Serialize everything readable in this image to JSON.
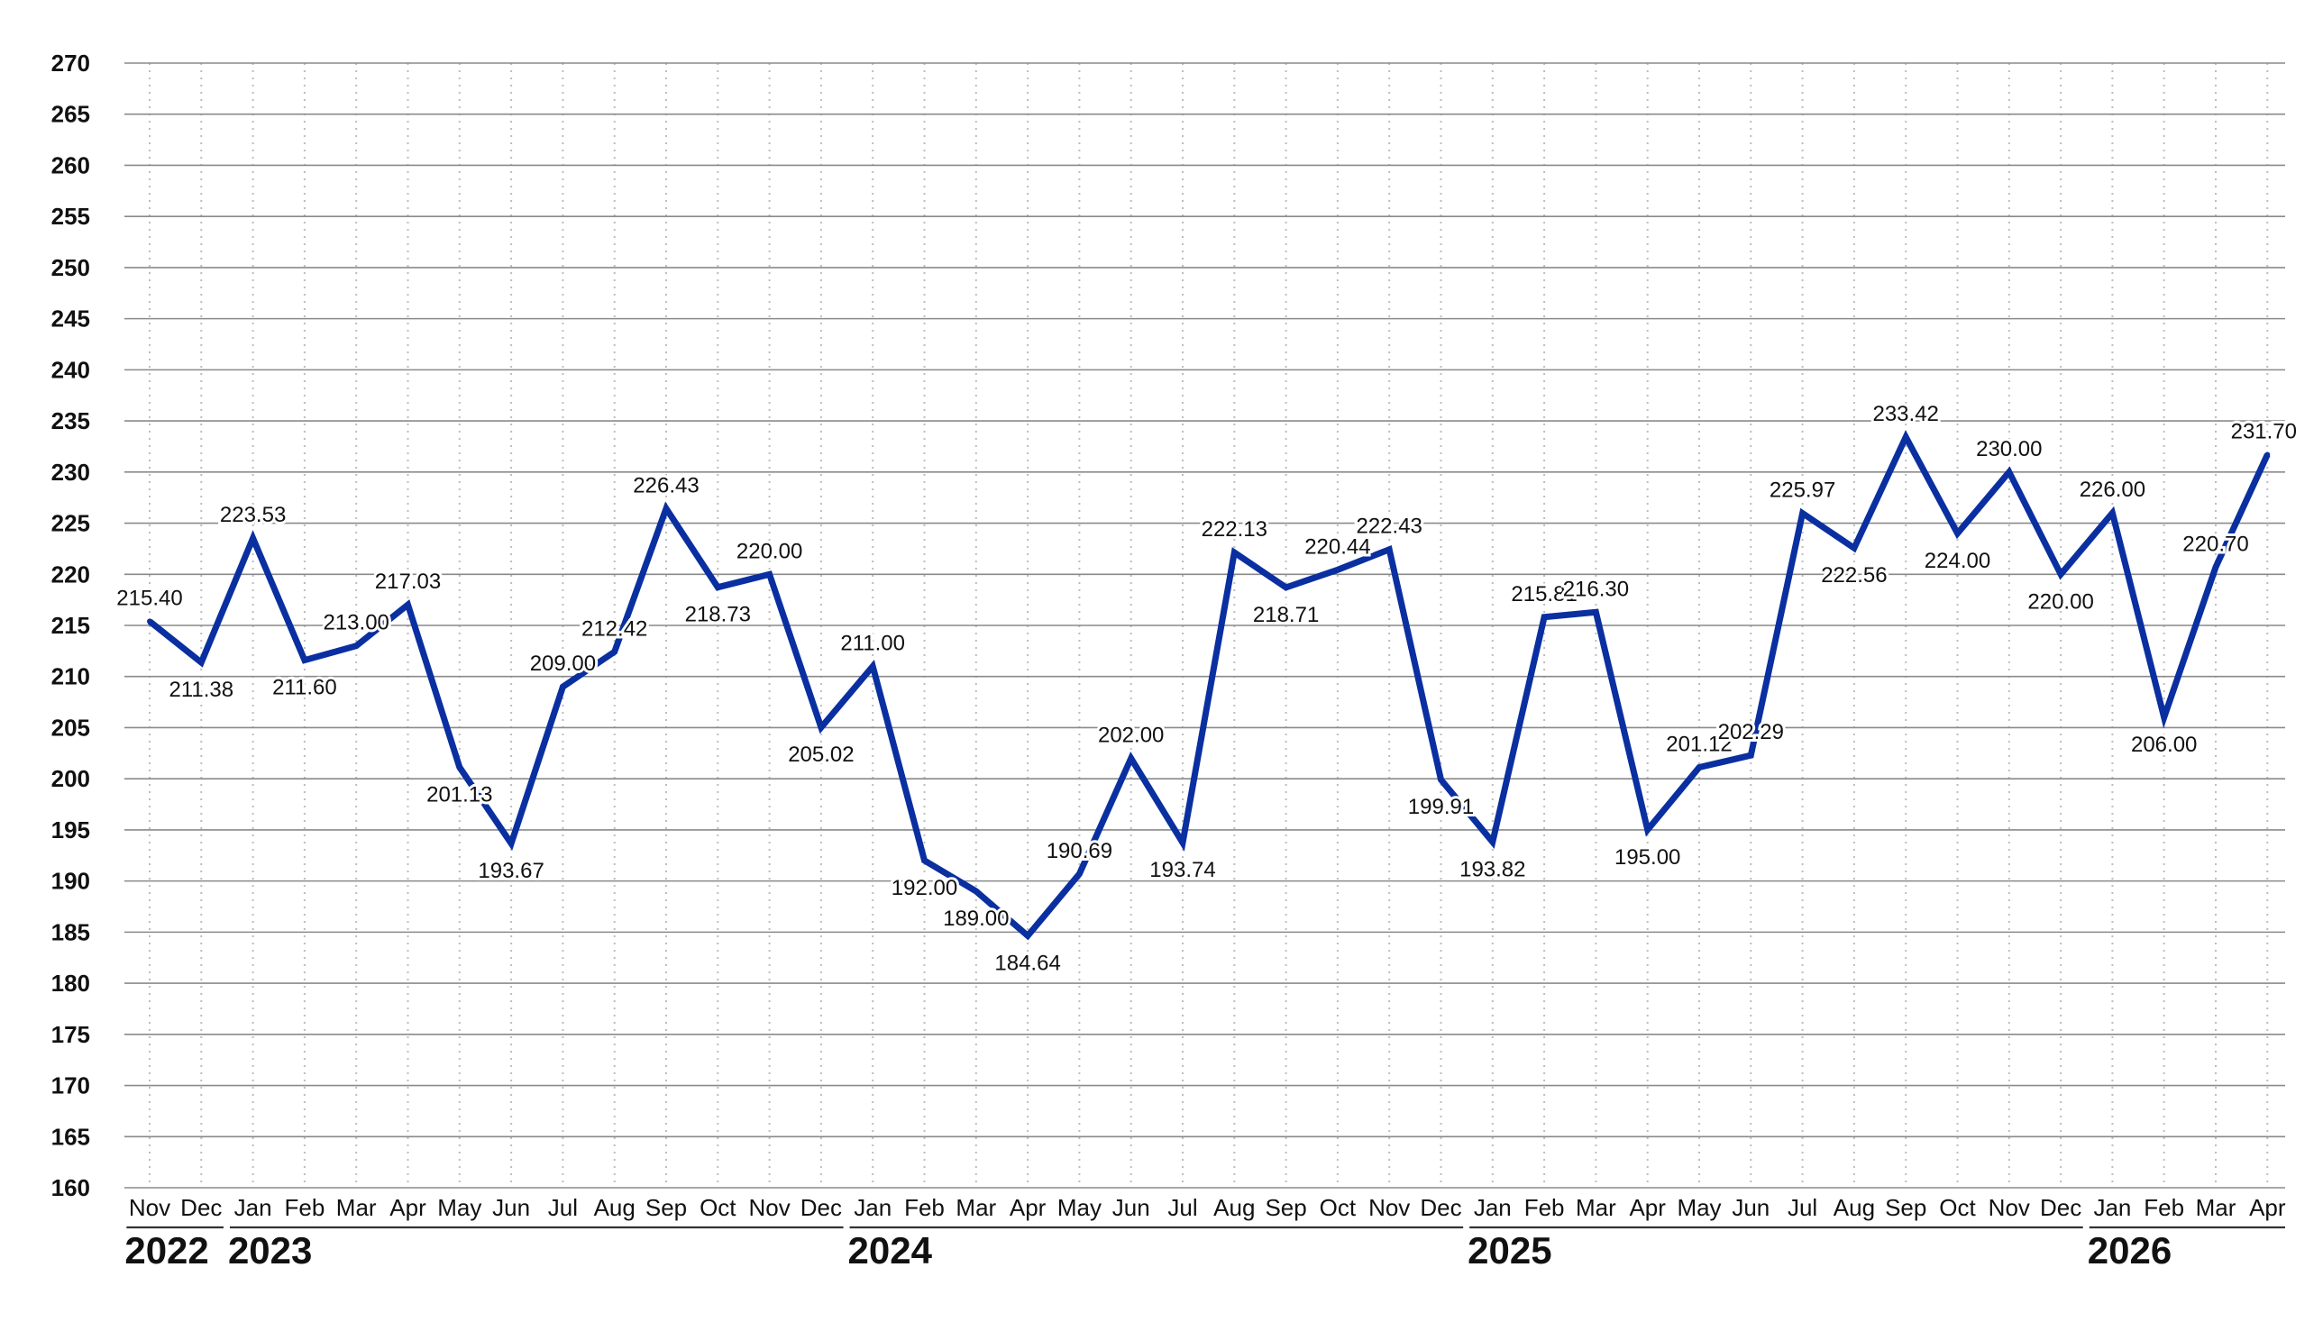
{
  "chart_data": {
    "type": "line",
    "title": "",
    "xlabel": "",
    "ylabel": "",
    "ylim": [
      160,
      270
    ],
    "yticks": [
      160,
      165,
      170,
      175,
      180,
      185,
      190,
      195,
      200,
      205,
      210,
      215,
      220,
      225,
      230,
      235,
      240,
      245,
      250,
      255,
      260,
      265,
      270
    ],
    "grid": true,
    "legend": "none",
    "line_color": "#0a2fa0",
    "categories": [
      "Nov",
      "Dec",
      "Jan",
      "Feb",
      "Mar",
      "Apr",
      "May",
      "Jun",
      "Jul",
      "Aug",
      "Sep",
      "Oct",
      "Nov",
      "Dec",
      "Jan",
      "Feb",
      "Mar",
      "Apr",
      "May",
      "Jun",
      "Jul",
      "Aug",
      "Sep",
      "Oct",
      "Nov",
      "Dec",
      "Jan",
      "Feb",
      "Mar",
      "Apr",
      "May",
      "Jun",
      "Jul",
      "Aug",
      "Sep",
      "Oct",
      "Nov",
      "Dec",
      "Jan",
      "Feb",
      "Mar",
      "Apr"
    ],
    "years": [
      {
        "label": "2022",
        "start": 0,
        "end": 1
      },
      {
        "label": "2023",
        "start": 2,
        "end": 13
      },
      {
        "label": "2024",
        "start": 14,
        "end": 25
      },
      {
        "label": "2025",
        "start": 26,
        "end": 37
      },
      {
        "label": "2026",
        "start": 38,
        "end": 41
      }
    ],
    "values": [
      215.4,
      211.38,
      223.53,
      211.6,
      213.0,
      217.03,
      201.13,
      193.67,
      209.0,
      212.42,
      226.43,
      218.73,
      220.0,
      205.02,
      211.0,
      192.0,
      189.0,
      184.64,
      190.69,
      202.0,
      193.74,
      222.13,
      218.71,
      220.44,
      222.43,
      199.91,
      193.82,
      215.81,
      216.3,
      195.0,
      201.12,
      202.29,
      225.97,
      222.56,
      233.42,
      224.0,
      230.0,
      220.0,
      226.0,
      206.0,
      220.7,
      231.7
    ],
    "data_labels": [
      "215.40",
      "211.38",
      "223.53",
      "211.60",
      "213.00",
      "217.03",
      "201.13",
      "193.67",
      "209.00",
      "212.42",
      "226.43",
      "218.73",
      "220.00",
      "205.02",
      "211.00",
      "192.00",
      "189.00",
      "184.64",
      "190.69",
      "202.00",
      "193.74",
      "222.13",
      "218.71",
      "220.44",
      "222.43",
      "199.91",
      "193.82",
      "215.81",
      "216.30",
      "195.00",
      "201.12",
      "202.29",
      "225.97",
      "222.56",
      "233.42",
      "224.00",
      "230.00",
      "220.00",
      "226.00",
      "206.00",
      "220.70",
      "231.70"
    ]
  }
}
